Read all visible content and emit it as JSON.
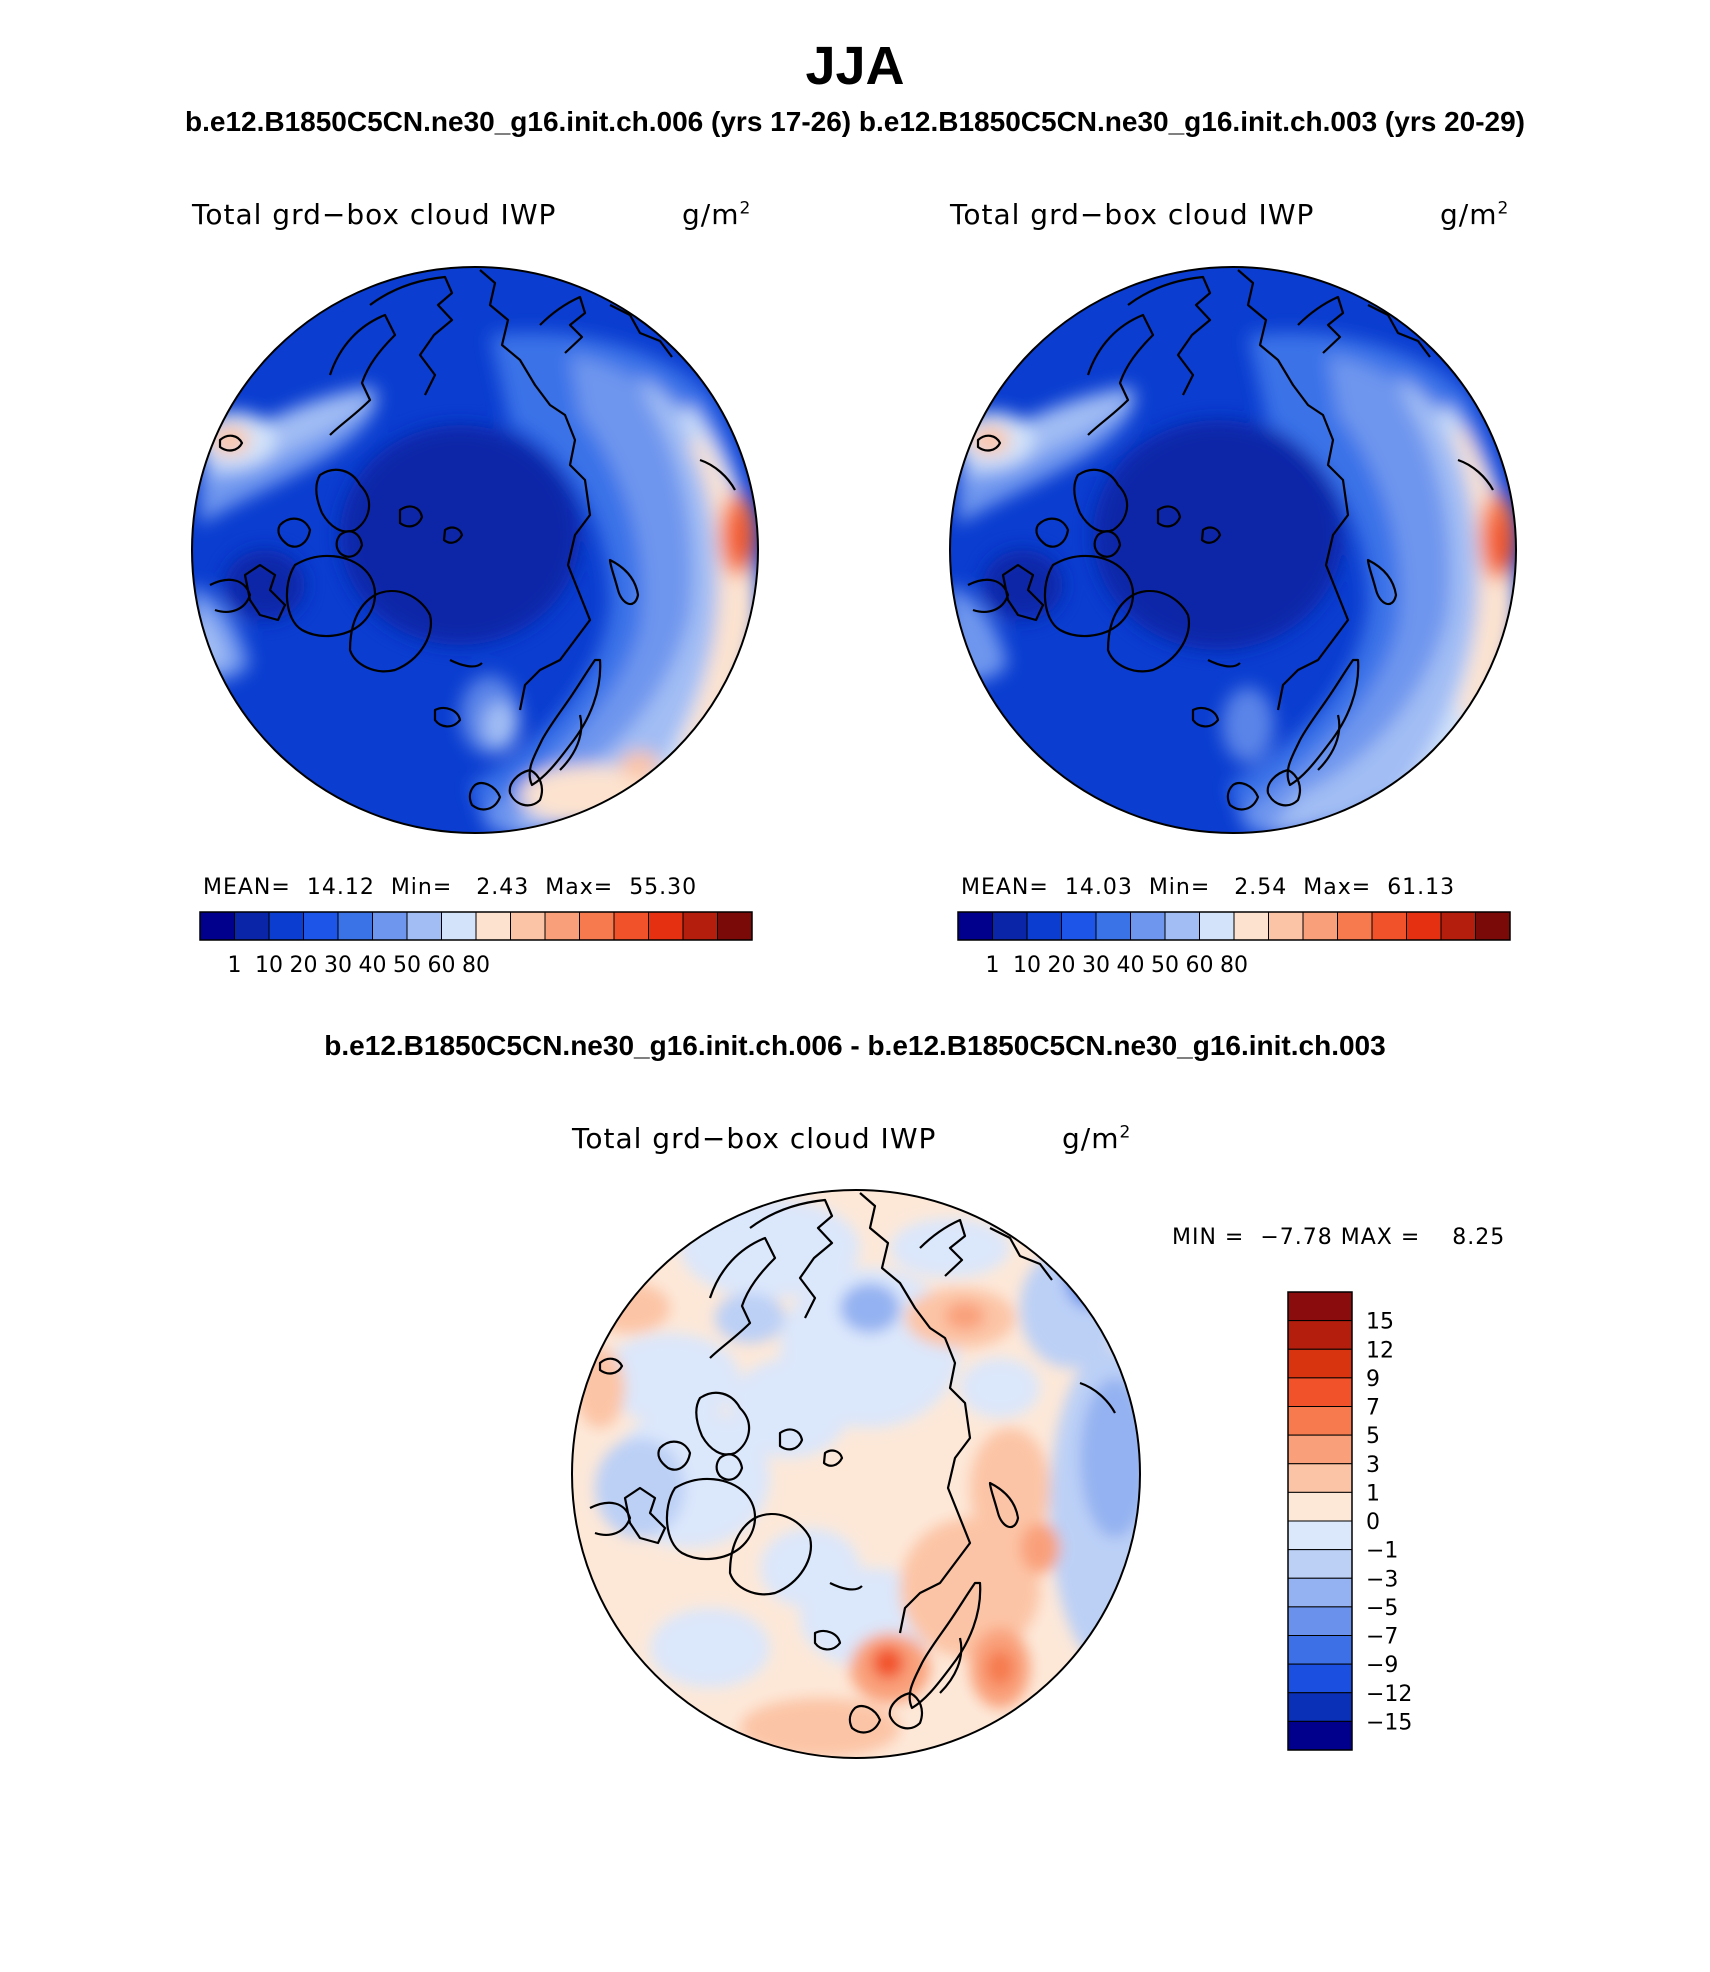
{
  "figure": {
    "season": "JJA",
    "runs_line": "b.e12.B1850C5CN.ne30_g16.init.ch.006 (yrs 17-26) b.e12.B1850C5CN.ne30_g16.init.ch.003 (yrs 20-29)",
    "diff_title": "b.e12.B1850C5CN.ne30_g16.init.ch.006 - b.e12.B1850C5CN.ne30_g16.init.ch.003"
  },
  "panels": [
    {
      "variable": "Total grd−box cloud IWP",
      "units_base": "g/m",
      "units_exp": "2",
      "mean_label": "MEAN=",
      "mean": "14.12",
      "min_label": "Min=",
      "min": "2.43",
      "max_label": "Max=",
      "max": "55.30"
    },
    {
      "variable": "Total grd−box cloud IWP",
      "units_base": "g/m",
      "units_exp": "2",
      "mean_label": "MEAN=",
      "mean": "14.03",
      "min_label": "Min=",
      "min": "2.54",
      "max_label": "Max=",
      "max": "61.13"
    }
  ],
  "colorbar": {
    "colors": [
      "#00008c",
      "#0a25a8",
      "#0a3dd0",
      "#1c55e8",
      "#3a72e8",
      "#6e96ee",
      "#a2bdf4",
      "#d3e4fa",
      "#fde3cf",
      "#fcc4a6",
      "#f9a07a",
      "#f67a4e",
      "#f2522a",
      "#e53012",
      "#b31f0c",
      "#7a0a08"
    ],
    "labels": [
      "1",
      "10",
      "20",
      "30",
      "40",
      "50",
      "60",
      "80"
    ]
  },
  "diff_panel": {
    "variable": "Total grd−box cloud IWP",
    "units_base": "g/m",
    "units_exp": "2",
    "minmax": "MIN =  −7.78 MAX =    8.25",
    "colorbar": {
      "colors_top_to_bottom": [
        "#8a0c0c",
        "#b31f0c",
        "#d93410",
        "#f2522a",
        "#f67a4e",
        "#f9a07a",
        "#fcc4a6",
        "#fde8d8",
        "#dbe7fb",
        "#bcd0f6",
        "#94b2f1",
        "#6a92ec",
        "#3d6fe6",
        "#1a4fe0",
        "#0a30b8",
        "#00008c"
      ],
      "labels": [
        "15",
        "12",
        "9",
        "7",
        "5",
        "3",
        "1",
        "0",
        "−1",
        "−3",
        "−5",
        "−7",
        "−9",
        "−12",
        "−15"
      ]
    }
  },
  "map_palette": {
    "land_outline": "#000000",
    "deep_blue": "#0a3dd0",
    "mid_blue": "#3a72e8",
    "light_blue": "#a2bdf4",
    "pale_blue": "#d3e4fa",
    "pale_orange": "#fde3cf",
    "orange": "#f67a4e"
  }
}
